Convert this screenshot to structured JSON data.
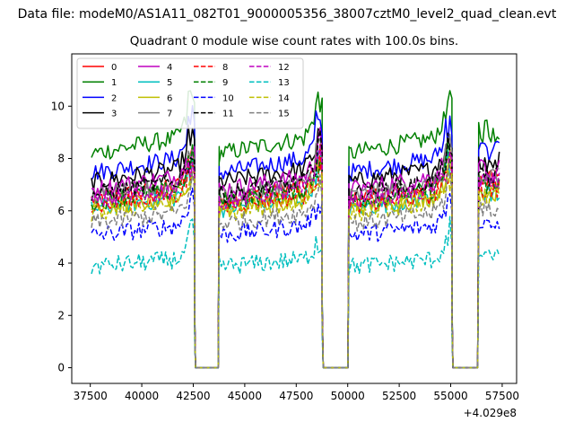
{
  "chart_data": {
    "type": "line",
    "suptitle": "Data file: modeM0/AS1A11_082T01_9000005356_38007cztM0_level2_quad_clean.evt",
    "title": "Quadrant 0 module wise count rates with 100.0s bins.",
    "xlabel": "",
    "ylabel": "",
    "x_offset_label": "+4.029e8",
    "xlim": [
      36600,
      58200
    ],
    "ylim": [
      -0.6,
      12.0
    ],
    "xticks": [
      37500,
      40000,
      42500,
      45000,
      47500,
      50000,
      52500,
      55000,
      57500
    ],
    "yticks": [
      0,
      2,
      4,
      6,
      8,
      10
    ],
    "legend": {
      "loc": "top-left",
      "ncol": 4
    },
    "segments": [
      [
        37560,
        42560
      ],
      [
        43760,
        48760
      ],
      [
        50060,
        55060
      ],
      [
        56360,
        57360
      ]
    ],
    "gaps": [
      [
        42560,
        43760
      ],
      [
        48760,
        50060
      ],
      [
        55060,
        56360
      ]
    ],
    "series": [
      {
        "name": "0",
        "color": "#ff0000",
        "dash": "solid",
        "level": 7.0
      },
      {
        "name": "1",
        "color": "#008000",
        "dash": "solid",
        "level": 8.9
      },
      {
        "name": "2",
        "color": "#0000ff",
        "dash": "solid",
        "level": 8.1
      },
      {
        "name": "3",
        "color": "#000000",
        "dash": "solid",
        "level": 7.7
      },
      {
        "name": "4",
        "color": "#bf00bf",
        "dash": "solid",
        "level": 7.4
      },
      {
        "name": "5",
        "color": "#00bfbf",
        "dash": "solid",
        "level": 6.6
      },
      {
        "name": "6",
        "color": "#bfbf00",
        "dash": "solid",
        "level": 6.6
      },
      {
        "name": "7",
        "color": "#808080",
        "dash": "solid",
        "level": 7.1
      },
      {
        "name": "8",
        "color": "#ff0000",
        "dash": "dashed",
        "level": 6.7
      },
      {
        "name": "9",
        "color": "#008000",
        "dash": "dashed",
        "level": 6.9
      },
      {
        "name": "10",
        "color": "#0000ff",
        "dash": "dashed",
        "level": 5.5
      },
      {
        "name": "11",
        "color": "#000000",
        "dash": "dashed",
        "level": 7.2
      },
      {
        "name": "12",
        "color": "#bf00bf",
        "dash": "dashed",
        "level": 6.9
      },
      {
        "name": "13",
        "color": "#00bfbf",
        "dash": "dashed",
        "level": 4.2
      },
      {
        "name": "14",
        "color": "#bfbf00",
        "dash": "dashed",
        "level": 6.4
      },
      {
        "name": "15",
        "color": "#808080",
        "dash": "dashed",
        "level": 6.0
      }
    ]
  }
}
